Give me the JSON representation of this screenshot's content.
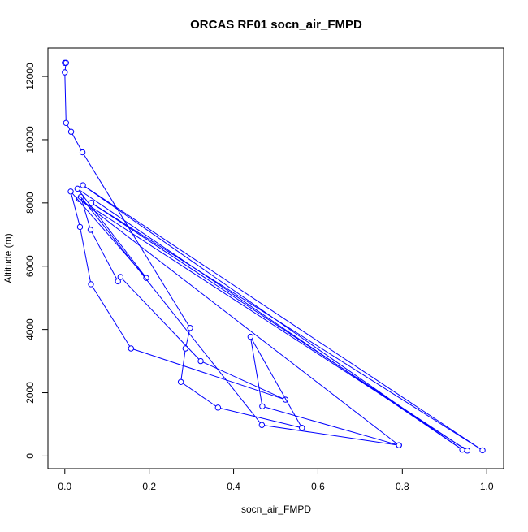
{
  "chart_data": {
    "type": "line",
    "title": "ORCAS RF01 socn_air_FMPD",
    "xlabel": "socn_air_FMPD",
    "ylabel": "Altitude (m)",
    "xlim": [
      -0.04,
      1.04
    ],
    "ylim": [
      -400,
      12900
    ],
    "xticks": [
      0.0,
      0.2,
      0.4,
      0.6,
      0.8,
      1.0
    ],
    "xtick_labels": [
      "0.0",
      "0.2",
      "0.4",
      "0.6",
      "0.8",
      "1.0"
    ],
    "yticks": [
      0,
      2000,
      4000,
      6000,
      8000,
      10000,
      12000
    ],
    "ytick_labels": [
      "0",
      "2000",
      "4000",
      "6000",
      "8000",
      "10000",
      "12000"
    ],
    "grid": false,
    "line_color": "#0000ff",
    "marker": "open-circle",
    "points": [
      {
        "x": 0.0,
        "y": 12430
      },
      {
        "x": 0.003,
        "y": 12430
      },
      {
        "x": 0.0,
        "y": 12130
      },
      {
        "x": 0.003,
        "y": 10530
      },
      {
        "x": 0.015,
        "y": 10250
      },
      {
        "x": 0.042,
        "y": 9600
      },
      {
        "x": 0.297,
        "y": 4050
      },
      {
        "x": 0.286,
        "y": 3400
      },
      {
        "x": 0.275,
        "y": 2340
      },
      {
        "x": 0.363,
        "y": 1530
      },
      {
        "x": 0.562,
        "y": 890
      },
      {
        "x": 0.44,
        "y": 3770
      },
      {
        "x": 0.468,
        "y": 1570
      },
      {
        "x": 0.792,
        "y": 340
      },
      {
        "x": 0.034,
        "y": 8120
      },
      {
        "x": 0.954,
        "y": 170
      },
      {
        "x": 0.063,
        "y": 8000
      },
      {
        "x": 0.99,
        "y": 180
      },
      {
        "x": 0.043,
        "y": 8560
      },
      {
        "x": 0.942,
        "y": 200
      },
      {
        "x": 0.03,
        "y": 8450
      },
      {
        "x": 0.193,
        "y": 5630
      },
      {
        "x": 0.014,
        "y": 8360
      },
      {
        "x": 0.036,
        "y": 7240
      },
      {
        "x": 0.062,
        "y": 5430
      },
      {
        "x": 0.157,
        "y": 3400
      },
      {
        "x": 0.523,
        "y": 1780
      },
      {
        "x": 0.322,
        "y": 3000
      },
      {
        "x": 0.132,
        "y": 5660
      },
      {
        "x": 0.126,
        "y": 5520
      },
      {
        "x": 0.061,
        "y": 7150
      },
      {
        "x": 0.038,
        "y": 8190
      },
      {
        "x": 0.467,
        "y": 980
      },
      {
        "x": 0.792,
        "y": 340
      }
    ]
  }
}
